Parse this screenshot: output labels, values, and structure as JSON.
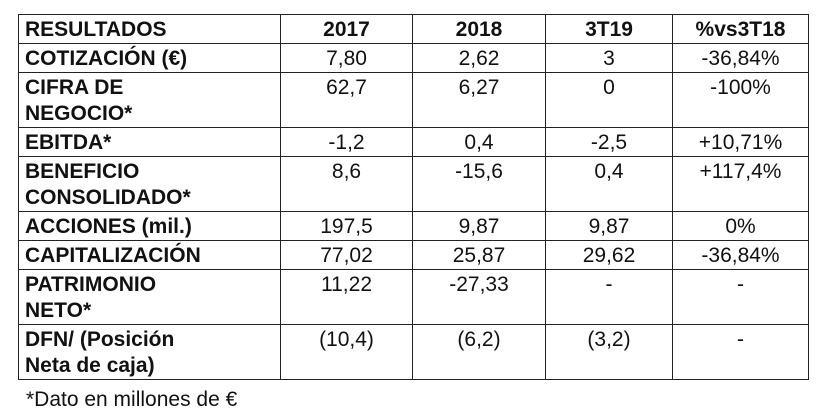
{
  "table": {
    "header": [
      "RESULTADOS",
      "2017",
      "2018",
      "3T19",
      "%vs3T18"
    ],
    "rows": [
      {
        "label": [
          "COTIZACIÓN (€)"
        ],
        "cells": [
          "7,80",
          "2,62",
          "3",
          "-36,84%"
        ]
      },
      {
        "label": [
          "CIFRA DE",
          "NEGOCIO*"
        ],
        "cells": [
          "62,7",
          "6,27",
          "0",
          "-100%"
        ]
      },
      {
        "label": [
          "EBITDA*"
        ],
        "cells": [
          "-1,2",
          "0,4",
          "-2,5",
          "+10,71%"
        ]
      },
      {
        "label": [
          "BENEFICIO",
          "CONSOLIDADO*"
        ],
        "cells": [
          "8,6",
          "-15,6",
          "0,4",
          "+117,4%"
        ]
      },
      {
        "label": [
          "ACCIONES (mil.)"
        ],
        "cells": [
          "197,5",
          "9,87",
          "9,87",
          "0%"
        ]
      },
      {
        "label": [
          "CAPITALIZACIÓN"
        ],
        "cells": [
          "77,02",
          "25,87",
          "29,62",
          "-36,84%"
        ]
      },
      {
        "label": [
          "PATRIMONIO",
          "NETO*"
        ],
        "cells": [
          "11,22",
          "-27,33",
          "-",
          "-"
        ]
      },
      {
        "label": [
          "DFN/ (Posición",
          "Neta de caja)"
        ],
        "cells": [
          "(10,4)",
          "(6,2)",
          "(3,2)",
          "-"
        ]
      }
    ]
  },
  "footnote": "*Dato en millones de €"
}
